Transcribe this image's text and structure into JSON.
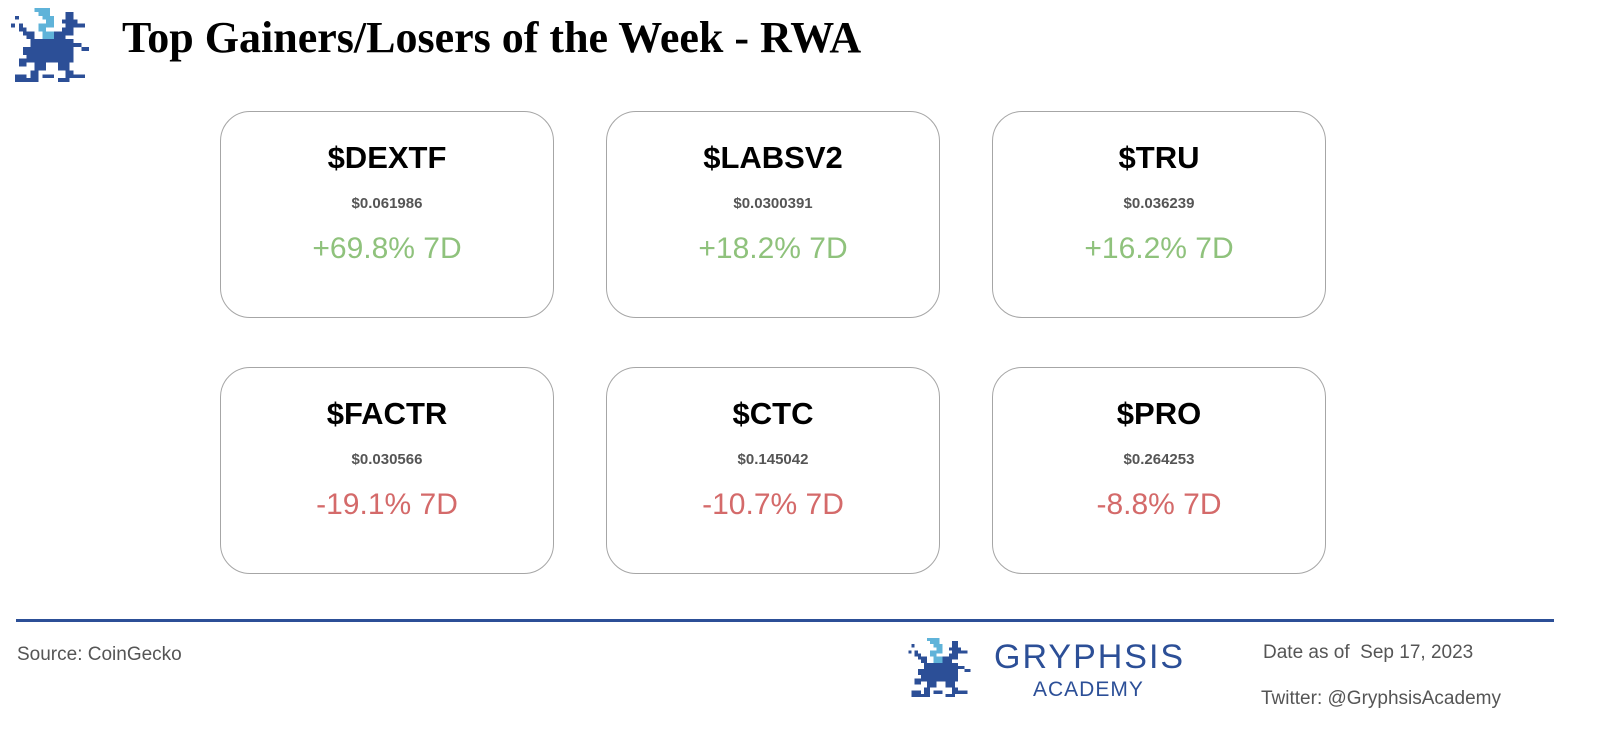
{
  "title": "Top Gainers/Losers of the Week - RWA",
  "colors": {
    "gain": "#8fc27c",
    "loss": "#d46a6a",
    "brand": "#2c4f97",
    "brand_light": "#5fb3d9",
    "card_border": "#a6a6a6"
  },
  "logo_icon": "gryphon-pixel-icon",
  "gainers": [
    {
      "ticker": "$DEXTF",
      "price": "$0.061986",
      "change": "+69.8% 7D"
    },
    {
      "ticker": "$LABSV2",
      "price": "$0.0300391",
      "change": "+18.2% 7D"
    },
    {
      "ticker": "$TRU",
      "price": "$0.036239",
      "change": "+16.2% 7D"
    }
  ],
  "losers": [
    {
      "ticker": "$FACTR",
      "price": "$0.030566",
      "change": "-19.1% 7D"
    },
    {
      "ticker": "$CTC",
      "price": "$0.145042",
      "change": "-10.7% 7D"
    },
    {
      "ticker": "$PRO",
      "price": "$0.264253",
      "change": "-8.8% 7D"
    }
  ],
  "footer": {
    "source": "Source: CoinGecko",
    "brand_name": "GRYPHSIS",
    "brand_sub": "ACADEMY",
    "date": "Date as of  Sep 17, 2023",
    "twitter": "Twitter: @GryphsisAcademy"
  }
}
